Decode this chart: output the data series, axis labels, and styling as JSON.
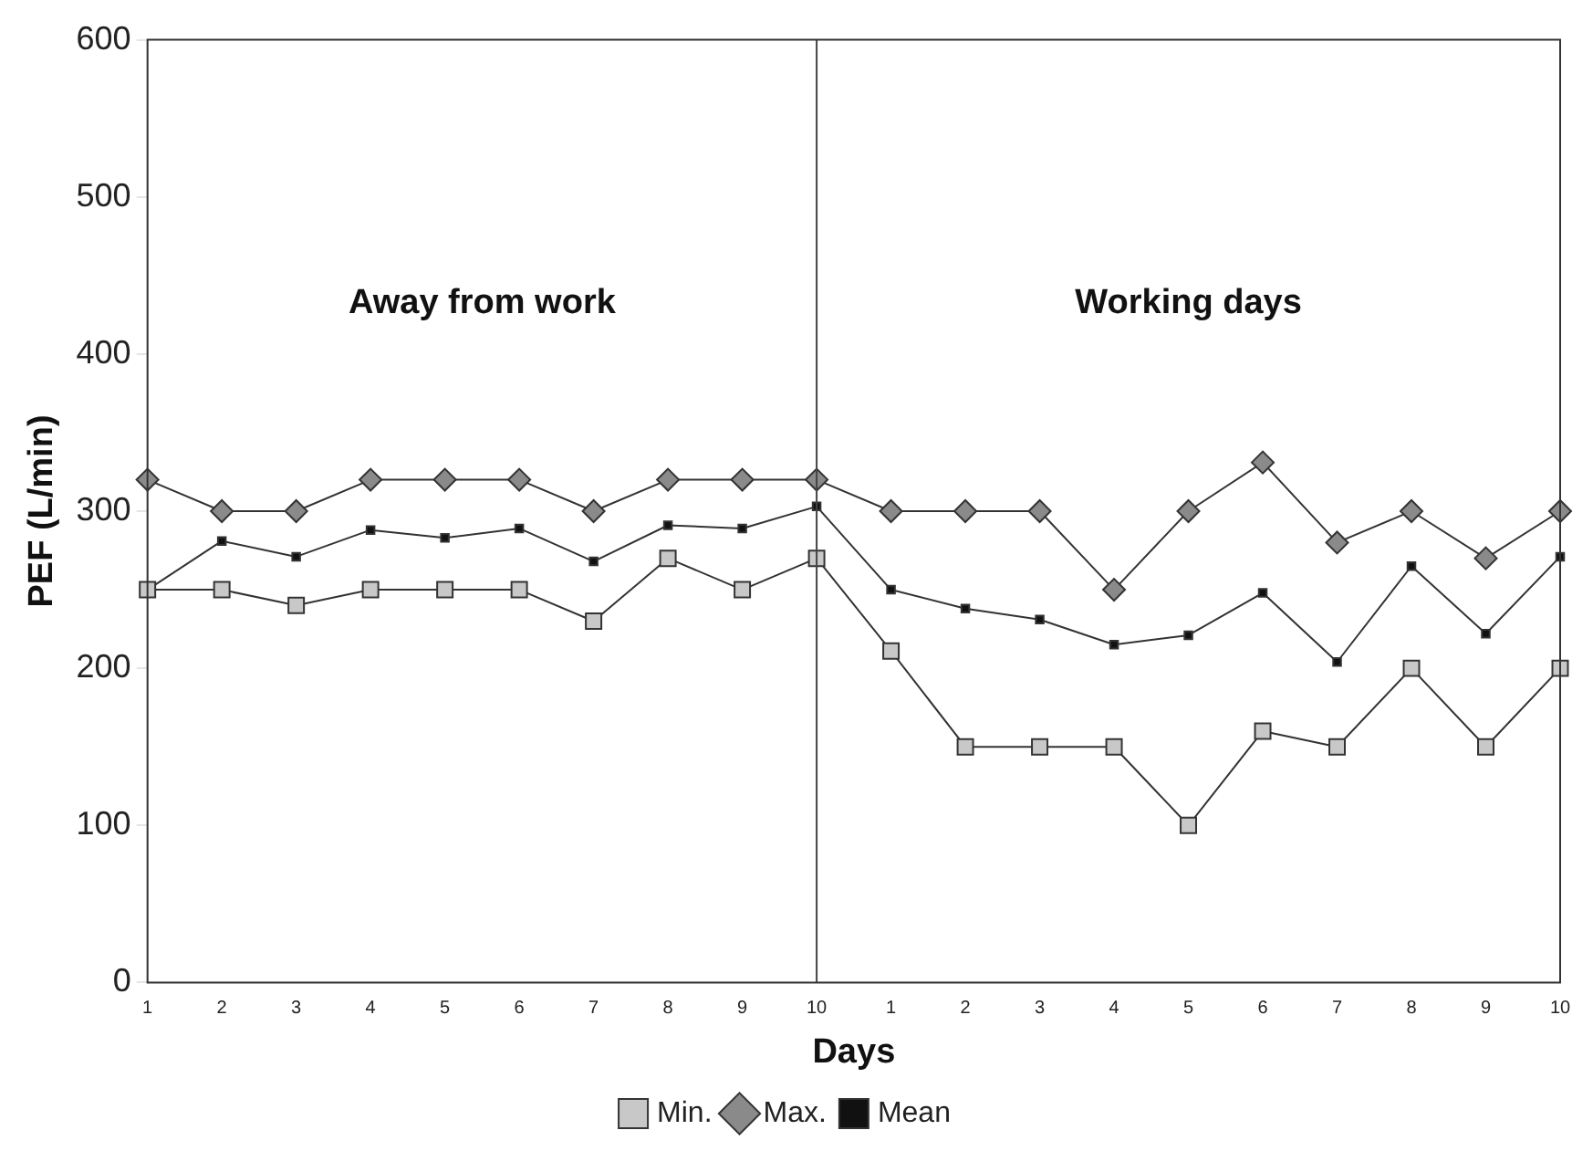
{
  "chart_data": {
    "type": "line",
    "xlabel": "Days",
    "ylabel": "PEF (L/min)",
    "categories": [
      "1",
      "2",
      "3",
      "4",
      "5",
      "6",
      "7",
      "8",
      "9",
      "10",
      "1",
      "2",
      "3",
      "4",
      "5",
      "6",
      "7",
      "8",
      "9",
      "10"
    ],
    "ylim": [
      0,
      600
    ],
    "yticks": [
      0,
      100,
      200,
      300,
      400,
      500,
      600
    ],
    "series": [
      {
        "name": "Min.",
        "color": "#c8c8c8",
        "marker": "square",
        "values": [
          250,
          250,
          240,
          250,
          250,
          250,
          230,
          270,
          250,
          270,
          211,
          150,
          150,
          150,
          100,
          160,
          150,
          200,
          150,
          200
        ]
      },
      {
        "name": "Max.",
        "color": "#8a8a8a",
        "marker": "diamond",
        "values": [
          320,
          300,
          300,
          320,
          320,
          320,
          300,
          320,
          320,
          320,
          300,
          300,
          300,
          250,
          300,
          331,
          280,
          300,
          270,
          300
        ]
      },
      {
        "name": "Mean",
        "color": "#111111",
        "marker": "square",
        "values": [
          250,
          281,
          271,
          288,
          283,
          289,
          268,
          291,
          289,
          303,
          250,
          238,
          231,
          215,
          221,
          248,
          204,
          265,
          222,
          271
        ]
      }
    ],
    "ref_lines": [
      {
        "axis": "x",
        "value": "10",
        "color": "#444444"
      }
    ],
    "annotations": [
      "Away from work",
      "Working days"
    ],
    "legend": "bottom",
    "grid": false
  }
}
